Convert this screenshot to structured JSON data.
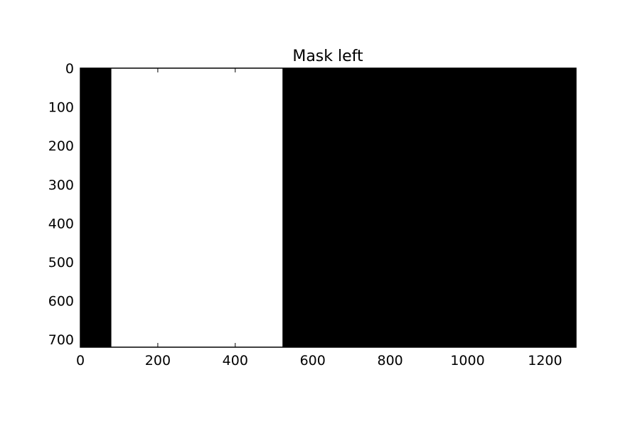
{
  "chart_data": {
    "type": "heatmap",
    "title": "Mask left",
    "xlabel": "",
    "ylabel": "",
    "image_width": 1280,
    "image_height": 720,
    "xlim": [
      0,
      1280
    ],
    "ylim": [
      720,
      0
    ],
    "x_ticks": [
      0,
      200,
      400,
      600,
      800,
      1000,
      1200
    ],
    "y_ticks": [
      0,
      100,
      200,
      300,
      400,
      500,
      600,
      700
    ],
    "x_tick_labels": [
      "0",
      "200",
      "400",
      "600",
      "800",
      "1000",
      "1200"
    ],
    "y_tick_labels": [
      "0",
      "100",
      "200",
      "300",
      "400",
      "500",
      "600",
      "700"
    ],
    "background_value": 0,
    "regions": [
      {
        "x_range": [
          80,
          522
        ],
        "y_range": [
          0,
          720
        ],
        "value": 1
      }
    ],
    "colors": {
      "zero": "#000000",
      "one": "#ffffff"
    },
    "grid": false
  }
}
